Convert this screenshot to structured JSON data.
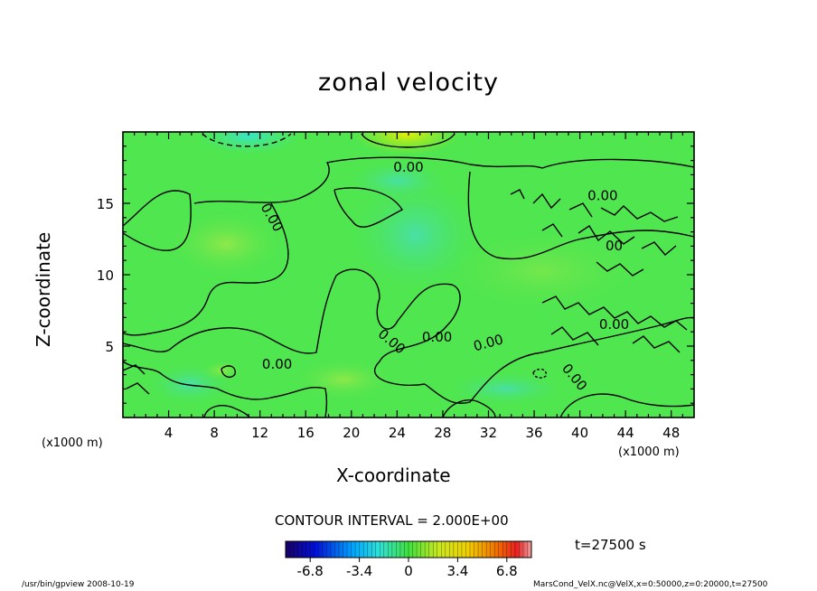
{
  "title": "zonal velocity",
  "contour_interval": "CONTOUR INTERVAL = 2.000E+00",
  "time_label": "t=27500 s",
  "footer_left": "/usr/bin/gpview  2008-10-19",
  "footer_right": "MarsCond_VelX.nc@VelX,x=0:50000,z=0:20000,t=27500",
  "colors": {
    "field_base": "#4fe64f",
    "frame": "#000000"
  },
  "chart_data": {
    "type": "heatmap",
    "title": "zonal velocity",
    "xlabel": "X-coordinate",
    "ylabel": "Z-coordinate",
    "x_unit": "(x1000 m)",
    "x_unit_left": "(x1000 m)",
    "x_unit_right": "(x1000 m)",
    "xlim": [
      0,
      50
    ],
    "ylim": [
      0,
      20
    ],
    "xticks": [
      4,
      8,
      12,
      16,
      20,
      24,
      28,
      32,
      36,
      40,
      44,
      48
    ],
    "yticks": [
      5,
      10,
      15
    ],
    "contour_labels": [
      {
        "text": "0.00",
        "x": 25,
        "z": 17.5,
        "rotate": 0
      },
      {
        "text": "0.00",
        "x": 13,
        "z": 14,
        "rotate": 60
      },
      {
        "text": "0.00",
        "x": 13.5,
        "z": 3.7,
        "rotate": 0
      },
      {
        "text": "0.00",
        "x": 23.5,
        "z": 5.3,
        "rotate": 40
      },
      {
        "text": "0.00",
        "x": 27.5,
        "z": 5.6,
        "rotate": 0
      },
      {
        "text": "0.00",
        "x": 32,
        "z": 5.2,
        "rotate": -15
      },
      {
        "text": "0.00",
        "x": 39.5,
        "z": 2.8,
        "rotate": 50
      },
      {
        "text": "0.00",
        "x": 43,
        "z": 6.5,
        "rotate": 0
      },
      {
        "text": "0.00",
        "x": 42,
        "z": 15.5,
        "rotate": 0
      },
      {
        "text": "00",
        "x": 43,
        "z": 12,
        "rotate": 0
      }
    ],
    "colorbar": {
      "ticks": [
        "-6.8",
        "-3.4",
        "0",
        "3.4",
        "6.8"
      ],
      "tick_values": [
        -6.8,
        -3.4,
        0,
        3.4,
        6.8
      ],
      "range": [
        -8.5,
        8.5
      ],
      "interval": 2.0
    },
    "features": [
      {
        "kind": "negative",
        "x": 11,
        "z": 19.8,
        "rx": 4,
        "rz": 1.4,
        "value": -2
      },
      {
        "kind": "positive",
        "x": 24.5,
        "z": 19.8,
        "rx": 4,
        "rz": 1.6,
        "value": 2
      },
      {
        "kind": "negative",
        "x": 26,
        "z": 13.5,
        "rx": 6,
        "rz": 5,
        "value": -1
      },
      {
        "kind": "positive",
        "x": 9,
        "z": 3.4,
        "rx": 1.5,
        "rz": 1,
        "value": 1
      }
    ]
  }
}
